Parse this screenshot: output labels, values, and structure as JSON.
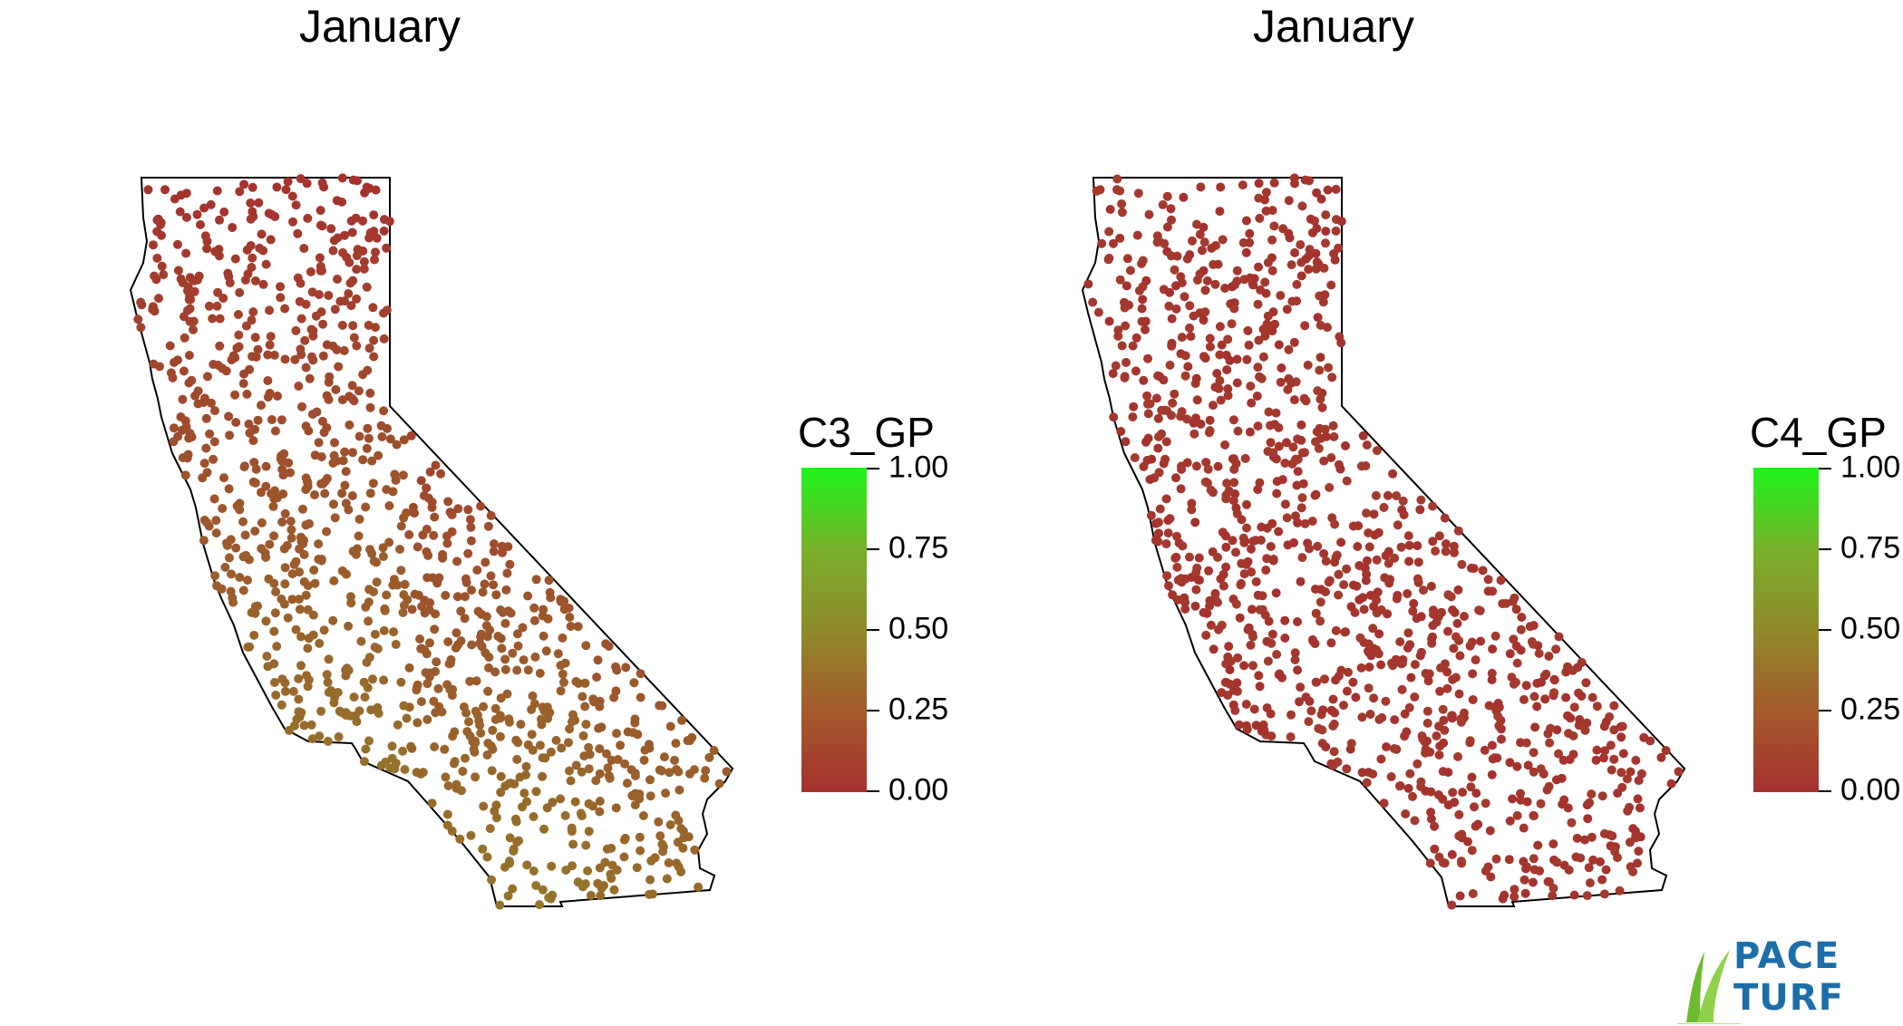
{
  "panels": [
    {
      "id": "left",
      "title": "January",
      "legend": {
        "title": "C3_GP",
        "ticks": [
          "1.00",
          "0.75",
          "0.50",
          "0.25",
          "0.00"
        ]
      },
      "variable": "C3_GP"
    },
    {
      "id": "right",
      "title": "January",
      "legend": {
        "title": "C4_GP",
        "ticks": [
          "1.00",
          "0.75",
          "0.50",
          "0.25",
          "0.00"
        ]
      },
      "variable": "C4_GP"
    }
  ],
  "colors": {
    "low": "#a5312e",
    "mid": "#8f8a2a",
    "high": "#1df51a",
    "outline": "#000000"
  },
  "logo": {
    "line1": "PACE",
    "line2": "TURF"
  }
}
